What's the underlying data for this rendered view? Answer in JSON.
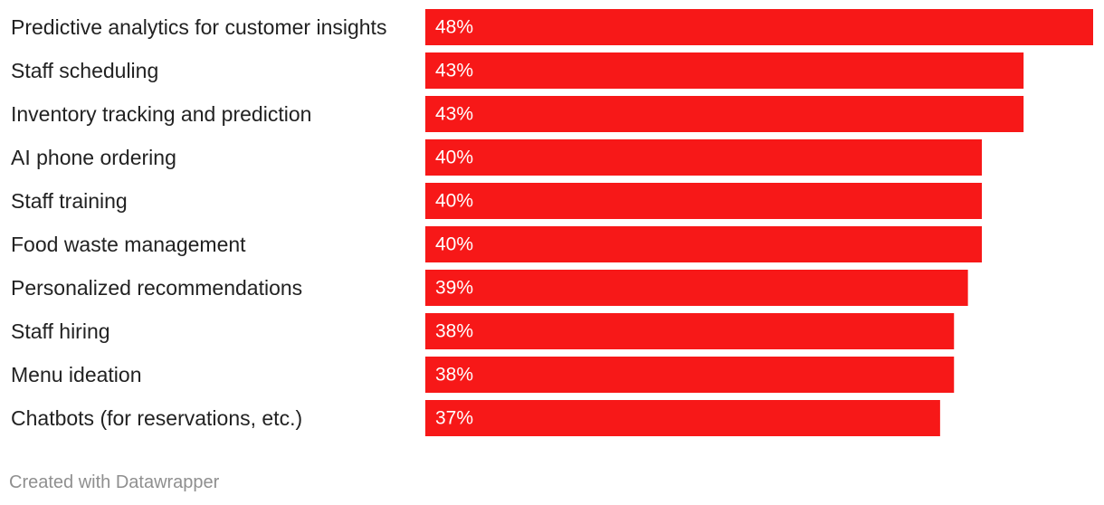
{
  "chart_data": {
    "type": "bar",
    "orientation": "horizontal",
    "categories": [
      "Predictive analytics for customer insights",
      "Staff scheduling",
      "Inventory tracking and prediction",
      "AI phone ordering",
      "Staff training",
      "Food waste management",
      "Personalized recommendations",
      "Staff hiring",
      "Menu ideation",
      "Chatbots (for reservations, etc.)"
    ],
    "values": [
      48,
      43,
      43,
      40,
      40,
      40,
      39,
      38,
      38,
      37
    ],
    "value_labels": [
      "48%",
      "43%",
      "43%",
      "40%",
      "40%",
      "40%",
      "39%",
      "38%",
      "38%",
      "37%"
    ],
    "unit": "%",
    "xlim": [
      0,
      48
    ],
    "grid": false,
    "legend": "none",
    "bar_color": "#f71818"
  },
  "footer": {
    "credit": "Created with Datawrapper"
  }
}
